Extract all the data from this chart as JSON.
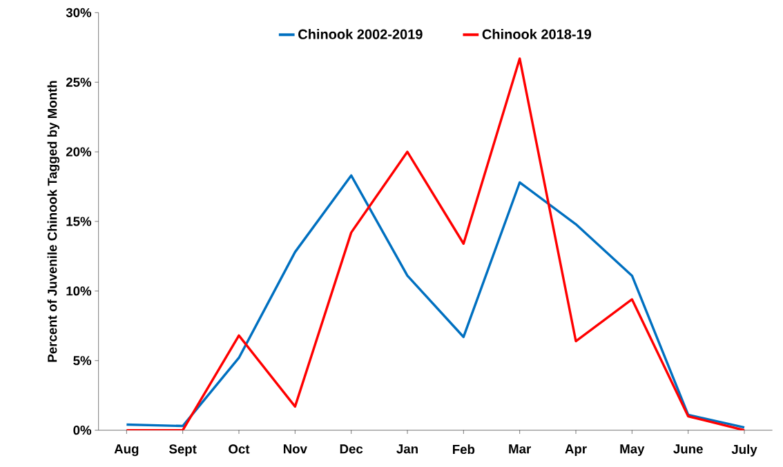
{
  "chart_data": {
    "type": "line",
    "ylabel": "Percent of Juvenile Chinook Tagged by Month",
    "categories": [
      "Aug",
      "Sept",
      "Oct",
      "Nov",
      "Dec",
      "Jan",
      "Feb",
      "Mar",
      "Apr",
      "May",
      "June",
      "July"
    ],
    "series": [
      {
        "name": "Chinook 2002-2019",
        "color": "#0070c0",
        "values": [
          0.4,
          0.3,
          5.2,
          12.8,
          18.3,
          11.1,
          6.7,
          17.8,
          14.8,
          11.1,
          1.1,
          0.2
        ]
      },
      {
        "name": "Chinook 2018-19",
        "color": "#ff0000",
        "values": [
          0,
          0,
          6.8,
          1.7,
          14.2,
          20.0,
          13.4,
          26.7,
          6.4,
          9.4,
          1.0,
          0
        ]
      }
    ],
    "ylim": [
      0,
      30
    ],
    "yticks": [
      {
        "value": 0,
        "label": "0%"
      },
      {
        "value": 5,
        "label": "5%"
      },
      {
        "value": 10,
        "label": "10%"
      },
      {
        "value": 15,
        "label": "15%"
      },
      {
        "value": 20,
        "label": "20%"
      },
      {
        "value": 25,
        "label": "25%"
      },
      {
        "value": 30,
        "label": "30%"
      }
    ],
    "legend": "top",
    "grid": false,
    "marker": "none",
    "line_style": "solid"
  }
}
